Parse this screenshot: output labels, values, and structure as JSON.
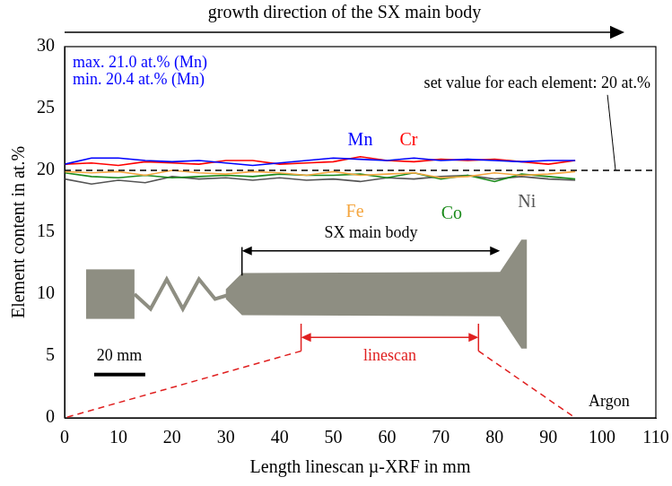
{
  "chart_data": {
    "type": "line",
    "x_label": "Length linescan µ-XRF in mm",
    "y_label": "Element content in at.%",
    "annotations": [
      "growth direction of the SX main body",
      "max. 21.0 at.% (Mn)",
      "min. 20.4 at.% (Mn)",
      "set value for each element: 20 at.%",
      "SX main body",
      "linescan",
      "20 mm",
      "Argon"
    ],
    "reference_value": 20,
    "x": [
      0,
      5,
      10,
      15,
      20,
      25,
      30,
      35,
      40,
      45,
      50,
      55,
      60,
      65,
      70,
      75,
      80,
      85,
      90,
      95
    ],
    "series": [
      {
        "name": "Mn",
        "color": "#0000ff",
        "values": [
          20.5,
          21.0,
          21.0,
          20.8,
          20.7,
          20.8,
          20.6,
          20.4,
          20.6,
          20.8,
          21.0,
          20.9,
          20.8,
          21.0,
          20.8,
          20.9,
          20.8,
          20.7,
          20.8,
          20.8
        ]
      },
      {
        "name": "Cr",
        "color": "#ff0000",
        "values": [
          20.5,
          20.6,
          20.4,
          20.7,
          20.6,
          20.5,
          20.8,
          20.8,
          20.5,
          20.6,
          20.7,
          21.1,
          20.8,
          20.7,
          20.9,
          20.8,
          20.9,
          20.7,
          20.5,
          20.8
        ]
      },
      {
        "name": "Fe",
        "color": "#f5a742",
        "values": [
          19.9,
          19.8,
          19.9,
          19.6,
          20.0,
          19.8,
          19.7,
          19.9,
          19.8,
          19.6,
          19.9,
          19.6,
          19.7,
          19.8,
          19.4,
          19.5,
          19.8,
          19.6,
          19.7,
          19.9
        ]
      },
      {
        "name": "Co",
        "color": "#1a8a1a",
        "values": [
          19.8,
          19.5,
          19.4,
          19.6,
          19.4,
          19.5,
          19.6,
          19.5,
          19.7,
          19.6,
          19.6,
          19.7,
          19.4,
          19.8,
          19.3,
          19.6,
          19.1,
          19.7,
          19.5,
          19.3
        ]
      },
      {
        "name": "Ni",
        "color": "#555555",
        "values": [
          19.3,
          18.9,
          19.2,
          19.0,
          19.5,
          19.3,
          19.4,
          19.2,
          19.4,
          19.2,
          19.3,
          19.1,
          19.4,
          19.3,
          19.5,
          19.6,
          19.3,
          19.5,
          19.3,
          19.2
        ]
      }
    ],
    "xlim": [
      0,
      110
    ],
    "xticks": [
      0,
      10,
      20,
      30,
      40,
      50,
      60,
      70,
      80,
      90,
      100,
      110
    ],
    "ylim": [
      0,
      30
    ],
    "yticks": [
      0,
      5,
      10,
      15,
      20,
      25,
      30
    ],
    "grid": false,
    "line_style": "solid"
  }
}
